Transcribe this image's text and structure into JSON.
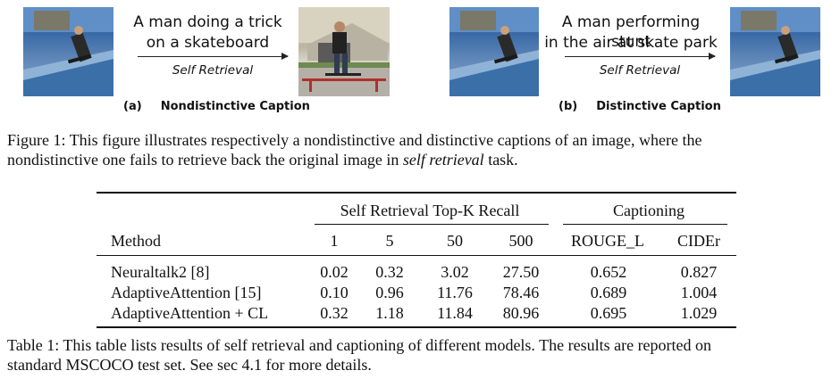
{
  "figure": {
    "panel_a": {
      "caption_line1": "A man doing a trick",
      "caption_line2": "on a skateboard",
      "retrieval_label": "Self Retrieval",
      "label_prefix": "(a)",
      "label_text": "Nondistinctive Caption"
    },
    "panel_b": {
      "caption_line1": "A man performing stunt",
      "caption_line2": "in the air at skate park",
      "retrieval_label": "Self Retrieval",
      "label_prefix": "(b)",
      "label_text": "Distinctive Caption"
    },
    "caption_prefix": "Figure 1:",
    "caption_part1": "This figure illustrates respectively a nondistinctive and distinctive captions of an image, where the",
    "caption_part2a": "nondistinctive one fails to retrieve back the original image in",
    "caption_italic": "self retrieval",
    "caption_part2b": "task."
  },
  "table": {
    "group_headers": [
      "Self Retrieval Top-K Recall",
      "Captioning"
    ],
    "columns": [
      "Method",
      "1",
      "5",
      "50",
      "500",
      "ROUGE_L",
      "CIDEr"
    ],
    "rows": [
      [
        "Neuraltalk2 [8]",
        "0.02",
        "0.32",
        "3.02",
        "27.50",
        "0.652",
        "0.827"
      ],
      [
        "AdaptiveAttention [15]",
        "0.10",
        "0.96",
        "11.76",
        "78.46",
        "0.689",
        "1.004"
      ],
      [
        "AdaptiveAttention + CL",
        "0.32",
        "1.18",
        "11.84",
        "80.96",
        "0.695",
        "1.029"
      ]
    ],
    "caption_prefix": "Table 1:",
    "caption_line1": "This table lists results of self retrieval and captioning of different models. The results are reported on",
    "caption_line2": "standard MSCOCO test set. See sec 4.1 for more details."
  },
  "colors": {
    "sky_blue": "#4a78b0",
    "ink": "#111111"
  }
}
